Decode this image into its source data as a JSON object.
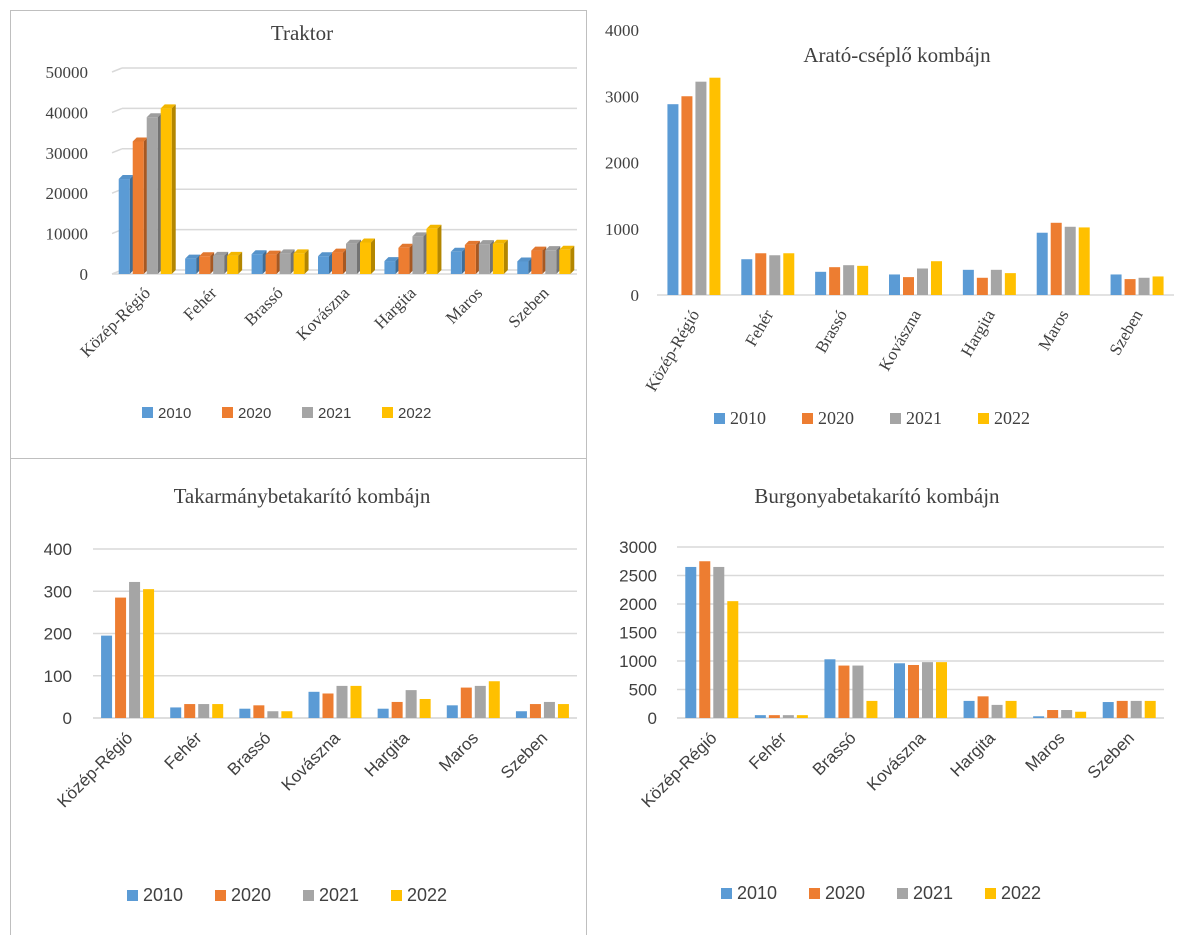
{
  "colors": {
    "2010": "#5b9bd5",
    "2020": "#ed7d31",
    "2021": "#a5a5a5",
    "2022": "#ffc000"
  },
  "chart_data": [
    {
      "type": "bar",
      "title": "Traktor",
      "categories": [
        "Közép-Régió",
        "Fehér",
        "Brassó",
        "Kovászna",
        "Hargita",
        "Maros",
        "Szeben"
      ],
      "ylim": [
        0,
        50000
      ],
      "yticks": [
        0,
        10000,
        20000,
        30000,
        40000,
        50000
      ],
      "grid": true,
      "style": "3d",
      "legend": "bottom",
      "series": [
        {
          "name": "2010",
          "values": [
            23500,
            3800,
            4900,
            4400,
            3200,
            5500,
            3100
          ]
        },
        {
          "name": "2020",
          "values": [
            32800,
            4400,
            4800,
            5300,
            6500,
            7200,
            5800
          ]
        },
        {
          "name": "2021",
          "values": [
            38800,
            4500,
            5100,
            7500,
            9300,
            7400,
            5900
          ]
        },
        {
          "name": "2022",
          "values": [
            41000,
            4500,
            5100,
            7800,
            11200,
            7500,
            6000
          ]
        }
      ]
    },
    {
      "type": "bar",
      "title": "Arató-cséplő kombájn",
      "categories": [
        "Közép-Régió",
        "Fehér",
        "Brassó",
        "Kovászna",
        "Hargita",
        "Maros",
        "Szeben"
      ],
      "ylim": [
        0,
        4000
      ],
      "yticks": [
        0,
        1000,
        2000,
        3000,
        4000
      ],
      "grid": false,
      "legend": "bottom",
      "series": [
        {
          "name": "2010",
          "values": [
            2880,
            540,
            350,
            310,
            380,
            940,
            310
          ]
        },
        {
          "name": "2020",
          "values": [
            3000,
            630,
            420,
            270,
            260,
            1090,
            240
          ]
        },
        {
          "name": "2021",
          "values": [
            3220,
            600,
            450,
            400,
            380,
            1030,
            260
          ]
        },
        {
          "name": "2022",
          "values": [
            3280,
            630,
            440,
            510,
            330,
            1020,
            280
          ]
        }
      ]
    },
    {
      "type": "bar",
      "title": "Takarmánybetakarító kombájn",
      "categories": [
        "Közép-Régió",
        "Fehér",
        "Brassó",
        "Kovászna",
        "Hargita",
        "Maros",
        "Szeben"
      ],
      "ylim": [
        0,
        400
      ],
      "yticks": [
        0,
        100,
        200,
        300,
        400
      ],
      "grid": true,
      "legend": "bottom",
      "series": [
        {
          "name": "2010",
          "values": [
            195,
            25,
            22,
            62,
            22,
            30,
            16
          ]
        },
        {
          "name": "2020",
          "values": [
            285,
            33,
            30,
            58,
            38,
            72,
            33
          ]
        },
        {
          "name": "2021",
          "values": [
            322,
            33,
            16,
            76,
            66,
            76,
            38
          ]
        },
        {
          "name": "2022",
          "values": [
            305,
            33,
            16,
            76,
            45,
            87,
            33
          ]
        }
      ]
    },
    {
      "type": "bar",
      "title": "Burgonyabetakarító kombájn",
      "categories": [
        "Közép-Régió",
        "Fehér",
        "Brassó",
        "Kovászna",
        "Hargita",
        "Maros",
        "Szeben"
      ],
      "ylim": [
        0,
        3000
      ],
      "yticks": [
        0,
        500,
        1000,
        1500,
        2000,
        2500,
        3000
      ],
      "grid": true,
      "legend": "bottom",
      "series": [
        {
          "name": "2010",
          "values": [
            2650,
            50,
            1030,
            960,
            300,
            30,
            280
          ]
        },
        {
          "name": "2020",
          "values": [
            2750,
            50,
            920,
            930,
            380,
            140,
            300
          ]
        },
        {
          "name": "2021",
          "values": [
            2650,
            50,
            920,
            980,
            230,
            140,
            300
          ]
        },
        {
          "name": "2022",
          "values": [
            2050,
            50,
            300,
            980,
            300,
            110,
            300
          ]
        }
      ]
    }
  ]
}
